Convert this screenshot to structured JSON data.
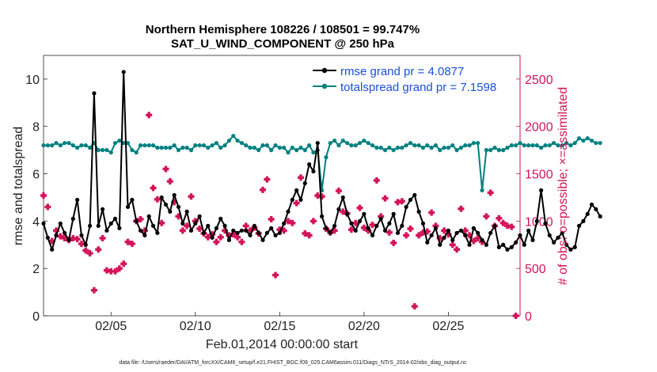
{
  "chart_data": {
    "type": "line",
    "title_line1": "Northern Hemisphere 108226 / 108501 = 99.747%",
    "title_line2": "SAT_U_WIND_COMPONENT @ 250 hPa",
    "xlabel": "Feb.01,2014 00:00:00 start",
    "ylabel_left": "rmse and totalspread",
    "ylabel_right": "# of obs: o=possible; ×=assimilated",
    "xlim": [
      1.0,
      29.25
    ],
    "ylim_left": [
      0,
      11
    ],
    "ylim_right": [
      0,
      2750
    ],
    "x_ticks": [
      {
        "value": 5,
        "label": "02/05"
      },
      {
        "value": 10,
        "label": "02/10"
      },
      {
        "value": 15,
        "label": "02/15"
      },
      {
        "value": 20,
        "label": "02/20"
      },
      {
        "value": 25,
        "label": "02/25"
      }
    ],
    "y_ticks_left": [
      {
        "value": 0,
        "label": "0"
      },
      {
        "value": 2,
        "label": "2"
      },
      {
        "value": 4,
        "label": "4"
      },
      {
        "value": 6,
        "label": "6"
      },
      {
        "value": 8,
        "label": "8"
      },
      {
        "value": 10,
        "label": "10"
      }
    ],
    "y_ticks_right": [
      {
        "value": 0,
        "label": "0"
      },
      {
        "value": 500,
        "label": "500"
      },
      {
        "value": 1000,
        "label": "1000"
      },
      {
        "value": 1500,
        "label": "1500"
      },
      {
        "value": 2000,
        "label": "2000"
      },
      {
        "value": 2500,
        "label": "2500"
      }
    ],
    "series": [
      {
        "name": "rmse grand pr = 4.0877",
        "color": "#000000",
        "axis": "left",
        "x_start": 1.0,
        "x_step": 0.25,
        "values": [
          3.9,
          3.3,
          2.8,
          3.4,
          3.9,
          3.5,
          3.2,
          4.1,
          4.9,
          3.4,
          3.0,
          3.8,
          9.4,
          3.8,
          4.5,
          3.6,
          3.9,
          4.1,
          3.7,
          10.3,
          4.6,
          4.9,
          4.0,
          3.6,
          3.4,
          4.2,
          3.8,
          3.5,
          5.0,
          4.7,
          4.4,
          5.1,
          4.6,
          3.9,
          4.4,
          3.6,
          3.9,
          4.2,
          3.5,
          3.8,
          3.3,
          3.7,
          4.1,
          3.8,
          3.2,
          3.6,
          3.5,
          3.6,
          3.6,
          3.4,
          3.8,
          3.5,
          3.2,
          3.5,
          3.7,
          3.4,
          3.5,
          3.9,
          4.4,
          4.9,
          5.3,
          4.9,
          5.6,
          6.4,
          6.1,
          7.3,
          4.2,
          3.7,
          3.5,
          3.8,
          4.5,
          5.0,
          4.3,
          3.9,
          3.6,
          4.0,
          4.3,
          3.7,
          3.4,
          3.8,
          4.1,
          3.6,
          3.9,
          4.3,
          3.5,
          3.8,
          4.6,
          4.9,
          5.1,
          4.4,
          3.9,
          3.1,
          3.4,
          3.7,
          3.0,
          3.3,
          3.6,
          3.2,
          3.5,
          3.6,
          3.4,
          3.0,
          3.7,
          3.5,
          3.2,
          3.0,
          3.5,
          3.8,
          2.9,
          3.0,
          2.8,
          2.9,
          3.1,
          3.4,
          3.0,
          3.6,
          3.2,
          4.0,
          5.3,
          3.9,
          3.4,
          3.1,
          3.3,
          3.5,
          3.0,
          2.8,
          2.9,
          3.8,
          4.0,
          4.3,
          4.7,
          4.5,
          4.2
        ]
      },
      {
        "name": "totalspread grand pr = 7.1598",
        "color": "#008080",
        "axis": "left",
        "x_start": 1.0,
        "x_step": 0.25,
        "values": [
          7.2,
          7.2,
          7.2,
          7.3,
          7.2,
          7.3,
          7.3,
          7.2,
          7.1,
          7.2,
          7.2,
          7.1,
          7.3,
          7.0,
          7.0,
          7.0,
          6.9,
          7.3,
          7.4,
          7.3,
          7.3,
          7.0,
          6.9,
          7.2,
          7.2,
          7.2,
          7.2,
          7.1,
          7.1,
          7.1,
          7.1,
          7.2,
          7.0,
          7.1,
          7.1,
          7.0,
          7.2,
          7.2,
          7.2,
          7.1,
          7.2,
          7.3,
          7.1,
          7.2,
          7.4,
          7.6,
          7.4,
          7.3,
          7.2,
          7.1,
          7.1,
          7.0,
          7.2,
          7.2,
          7.0,
          7.2,
          7.1,
          7.1,
          6.9,
          7.1,
          7.0,
          7.1,
          7.0,
          7.2,
          6.9,
          7.0,
          5.3,
          6.7,
          7.3,
          7.4,
          7.2,
          7.4,
          7.3,
          7.2,
          7.2,
          7.3,
          7.4,
          7.3,
          7.2,
          7.1,
          7.1,
          7.0,
          7.1,
          7.0,
          7.1,
          7.1,
          7.2,
          7.3,
          7.2,
          7.2,
          7.1,
          7.2,
          7.1,
          7.2,
          7.0,
          7.1,
          7.1,
          7.2,
          7.0,
          7.1,
          7.2,
          7.2,
          7.3,
          7.3,
          5.3,
          7.0,
          7.0,
          7.1,
          7.0,
          7.0,
          7.1,
          7.2,
          7.2,
          7.3,
          7.2,
          7.2,
          7.2,
          7.2,
          7.1,
          7.2,
          7.2,
          7.3,
          7.2,
          7.2,
          7.3,
          7.2,
          7.3,
          7.5,
          7.4,
          7.5,
          7.4,
          7.3,
          7.3
        ]
      }
    ],
    "scatter_series": [
      {
        "name": "# of obs assimilated",
        "color": "#d4145a",
        "axis": "right",
        "points": [
          [
            1.0,
            1270
          ],
          [
            1.25,
            1150
          ],
          [
            1.5,
            790
          ],
          [
            1.75,
            900
          ],
          [
            2.0,
            840
          ],
          [
            2.25,
            820
          ],
          [
            2.5,
            800
          ],
          [
            2.75,
            820
          ],
          [
            3.0,
            810
          ],
          [
            3.25,
            760
          ],
          [
            3.5,
            690
          ],
          [
            3.75,
            660
          ],
          [
            4.0,
            270
          ],
          [
            4.25,
            700
          ],
          [
            4.5,
            820
          ],
          [
            4.75,
            480
          ],
          [
            5.0,
            470
          ],
          [
            5.25,
            470
          ],
          [
            5.5,
            500
          ],
          [
            5.75,
            550
          ],
          [
            6.0,
            780
          ],
          [
            6.25,
            760
          ],
          [
            6.5,
            1000
          ],
          [
            6.75,
            1020
          ],
          [
            7.0,
            900
          ],
          [
            7.25,
            2120
          ],
          [
            7.5,
            1350
          ],
          [
            7.75,
            1230
          ],
          [
            8.0,
            980
          ],
          [
            8.25,
            1550
          ],
          [
            8.5,
            1420
          ],
          [
            8.75,
            1200
          ],
          [
            9.0,
            1050
          ],
          [
            9.25,
            900
          ],
          [
            9.5,
            950
          ],
          [
            9.75,
            1260
          ],
          [
            10.0,
            1000
          ],
          [
            10.25,
            920
          ],
          [
            10.5,
            870
          ],
          [
            10.75,
            830
          ],
          [
            11.0,
            860
          ],
          [
            11.25,
            780
          ],
          [
            11.5,
            830
          ],
          [
            11.75,
            900
          ],
          [
            12.0,
            850
          ],
          [
            12.25,
            860
          ],
          [
            12.5,
            830
          ],
          [
            12.75,
            780
          ],
          [
            13.0,
            950
          ],
          [
            13.25,
            900
          ],
          [
            13.5,
            930
          ],
          [
            13.75,
            870
          ],
          [
            14.0,
            1330
          ],
          [
            14.25,
            1440
          ],
          [
            14.5,
            1020
          ],
          [
            14.75,
            430
          ],
          [
            15.0,
            910
          ],
          [
            15.25,
            900
          ],
          [
            15.5,
            1000
          ],
          [
            15.75,
            980
          ],
          [
            16.0,
            1190
          ],
          [
            16.25,
            1460
          ],
          [
            16.5,
            870
          ],
          [
            16.75,
            850
          ],
          [
            17.0,
            1000
          ],
          [
            17.25,
            1270
          ],
          [
            17.5,
            1260
          ],
          [
            17.75,
            920
          ],
          [
            18.0,
            880
          ],
          [
            18.25,
            900
          ],
          [
            18.5,
            1320
          ],
          [
            18.75,
            1100
          ],
          [
            19.0,
            1080
          ],
          [
            19.25,
            910
          ],
          [
            19.5,
            980
          ],
          [
            19.75,
            1140
          ],
          [
            20.0,
            930
          ],
          [
            20.25,
            900
          ],
          [
            20.5,
            960
          ],
          [
            20.75,
            1430
          ],
          [
            21.0,
            1050
          ],
          [
            21.25,
            1240
          ],
          [
            21.5,
            880
          ],
          [
            21.75,
            770
          ],
          [
            22.0,
            1200
          ],
          [
            22.25,
            1210
          ],
          [
            22.5,
            850
          ],
          [
            22.75,
            920
          ],
          [
            23.0,
            100
          ],
          [
            23.25,
            850
          ],
          [
            23.5,
            880
          ],
          [
            23.75,
            890
          ],
          [
            24.0,
            1090
          ],
          [
            24.25,
            950
          ],
          [
            24.5,
            820
          ],
          [
            24.75,
            900
          ],
          [
            25.0,
            860
          ],
          [
            25.25,
            750
          ],
          [
            25.5,
            700
          ],
          [
            25.75,
            1130
          ],
          [
            26.0,
            900
          ],
          [
            26.25,
            850
          ],
          [
            26.5,
            790
          ],
          [
            26.75,
            820
          ],
          [
            27.0,
            780
          ],
          [
            27.25,
            1050
          ],
          [
            27.5,
            1300
          ],
          [
            27.75,
            950
          ],
          [
            28.0,
            1030
          ],
          [
            28.25,
            980
          ],
          [
            28.5,
            950
          ],
          [
            28.75,
            940
          ],
          [
            29.0,
            0
          ]
        ]
      }
    ],
    "legend_position": "top-right",
    "footer": "data file: /Users/raeder/DAI/ATM_forcXX/CAM6_setup/f.e21.FHIST_BGC.f09_025.CAM6assim.011/Diags_NTrS_2014-02/obs_diag_output.nc"
  }
}
